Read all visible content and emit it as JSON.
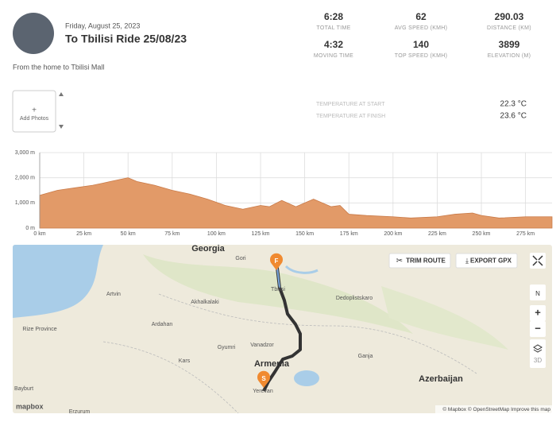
{
  "header": {
    "date": "Friday, August 25, 2023",
    "title": "To Tbilisi Ride 25/08/23",
    "description": "From the home to Tbilisi Mall"
  },
  "stats": [
    {
      "value": "6:28",
      "label": "TOTAL TIME"
    },
    {
      "value": "62",
      "label": "AVG SPEED (KMH)"
    },
    {
      "value": "290.03",
      "label": "DISTANCE (KM)"
    },
    {
      "value": "4:32",
      "label": "MOVING TIME"
    },
    {
      "value": "140",
      "label": "TOP SPEED (KMH)"
    },
    {
      "value": "3899",
      "label": "ELEVATION (M)"
    }
  ],
  "photos": {
    "button": "Add Photos"
  },
  "temperature": [
    {
      "label": "TEMPERATURE AT START",
      "value": "22.3 °C"
    },
    {
      "label": "TEMPERATURE AT FINISH",
      "value": "23.6 °C"
    }
  ],
  "elevation_chart": {
    "type": "area",
    "color": "#e29a68",
    "x": [
      0,
      5,
      10,
      20,
      30,
      40,
      50,
      55,
      65,
      75,
      85,
      95,
      105,
      115,
      125,
      130,
      137,
      145,
      155,
      165,
      170,
      175,
      185,
      200,
      210,
      225,
      235,
      245,
      250,
      260,
      275,
      290
    ],
    "values": [
      1300,
      1400,
      1500,
      1600,
      1700,
      1850,
      2000,
      1850,
      1700,
      1500,
      1350,
      1150,
      900,
      750,
      900,
      850,
      1100,
      850,
      1150,
      850,
      900,
      550,
      500,
      450,
      400,
      450,
      550,
      600,
      500,
      400,
      450,
      450
    ],
    "xlim": [
      0,
      290
    ],
    "xticks": [
      {
        "value": 0,
        "label": "0 km"
      },
      {
        "value": 25,
        "label": "25 km"
      },
      {
        "value": 50,
        "label": "50 km"
      },
      {
        "value": 75,
        "label": "75 km"
      },
      {
        "value": 100,
        "label": "100 km"
      },
      {
        "value": 125,
        "label": "125 km"
      },
      {
        "value": 150,
        "label": "150 km"
      },
      {
        "value": 175,
        "label": "175 km"
      },
      {
        "value": 200,
        "label": "200 km"
      },
      {
        "value": 225,
        "label": "225 km"
      },
      {
        "value": 250,
        "label": "250 km"
      },
      {
        "value": 275,
        "label": "275 km"
      }
    ],
    "ylim": [
      0,
      3000
    ],
    "yticks": [
      {
        "value": 0,
        "label": "0 m"
      },
      {
        "value": 1000,
        "label": "1,000 m"
      },
      {
        "value": 2000,
        "label": "2,000 m"
      },
      {
        "value": 3000,
        "label": "3,000 m"
      }
    ],
    "grid": true
  },
  "map": {
    "buttons": [
      "TRIM ROUTE",
      "EXPORT GPX"
    ],
    "controls": [
      "N",
      "+",
      "−",
      "3D"
    ],
    "markers": [
      "F",
      "S"
    ],
    "logo": "mapbox",
    "attribution": "© Mapbox © OpenStreetMap Improve this map",
    "labels": [
      "Georgia",
      "Armenia",
      "Azerbaijan",
      "Tbilisi",
      "Yerevan",
      "Gyumri",
      "Vanadzor",
      "Ganja",
      "Kars",
      "Ardahan",
      "Artvin",
      "Rize Province",
      "Bayburt",
      "Erzurum",
      "Dedoplistskaro",
      "Gori",
      "Akhalkalaki"
    ]
  }
}
